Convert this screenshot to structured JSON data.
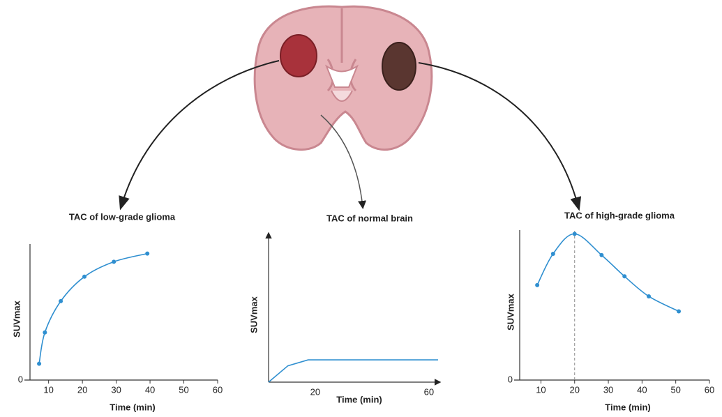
{
  "chart_data": [
    {
      "type": "line",
      "title": "TAC of low-grade glioma",
      "x_label": "Time (min)",
      "y_label": "SUVmax",
      "x": [
        7.2,
        8.9,
        13.6,
        20.6,
        29.3,
        39.2
      ],
      "values": [
        1.2,
        3.5,
        5.8,
        7.6,
        8.7,
        9.3
      ],
      "color": "#2f8fd0",
      "markers": true,
      "xlim": [
        4.5,
        60
      ],
      "ylim": [
        0,
        10
      ],
      "xticks": [
        10,
        20,
        30,
        40,
        50,
        60
      ],
      "yticks": [
        0
      ]
    },
    {
      "type": "line",
      "title": "TAC of normal brain",
      "x_label": "Time (min)",
      "y_label": "SUVmax",
      "x": [
        3.6,
        10.4,
        17.5,
        63.2
      ],
      "values": [
        0,
        1.1,
        1.5,
        1.5
      ],
      "color": "#2f8fd0",
      "markers": false,
      "axis_arrows": true,
      "xlim": [
        3.6,
        63.7
      ],
      "ylim": [
        0,
        10
      ],
      "xticks": [
        20,
        60
      ]
    },
    {
      "type": "line",
      "title": "TAC of high-grade glioma",
      "x_label": "Time (min)",
      "y_label": "SUVmax",
      "x": [
        8.9,
        13.6,
        20,
        28,
        34.8,
        42,
        50.9
      ],
      "values": [
        7.6,
        10.1,
        11.7,
        10.0,
        8.3,
        6.7,
        5.5
      ],
      "color": "#2f8fd0",
      "markers": true,
      "reference_line": 20,
      "xlim": [
        3.7,
        60
      ],
      "ylim": [
        0,
        12
      ],
      "xticks": [
        10,
        20,
        30,
        40,
        50,
        60
      ],
      "yticks": [
        0
      ]
    }
  ]
}
